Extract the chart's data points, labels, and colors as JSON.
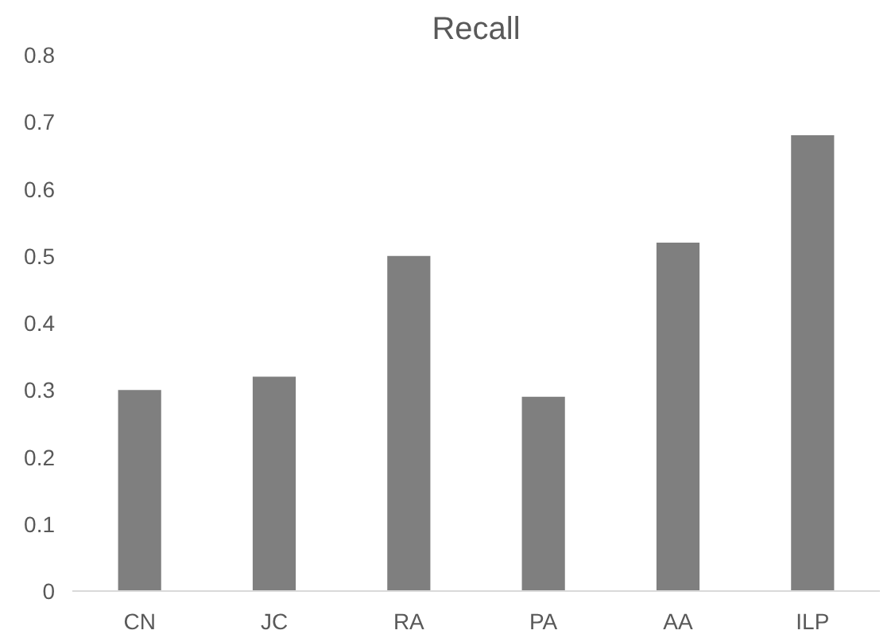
{
  "chart_data": {
    "type": "bar",
    "title": "Recall",
    "categories": [
      "CN",
      "JC",
      "RA",
      "PA",
      "AA",
      "ILP"
    ],
    "values": [
      0.3,
      0.32,
      0.5,
      0.29,
      0.52,
      0.68
    ],
    "color": "#7f7f7f",
    "ylim": [
      0,
      0.8
    ],
    "yticks": [
      0,
      0.1,
      0.2,
      0.3,
      0.4,
      0.5,
      0.6,
      0.7,
      0.8
    ],
    "grid": false
  }
}
